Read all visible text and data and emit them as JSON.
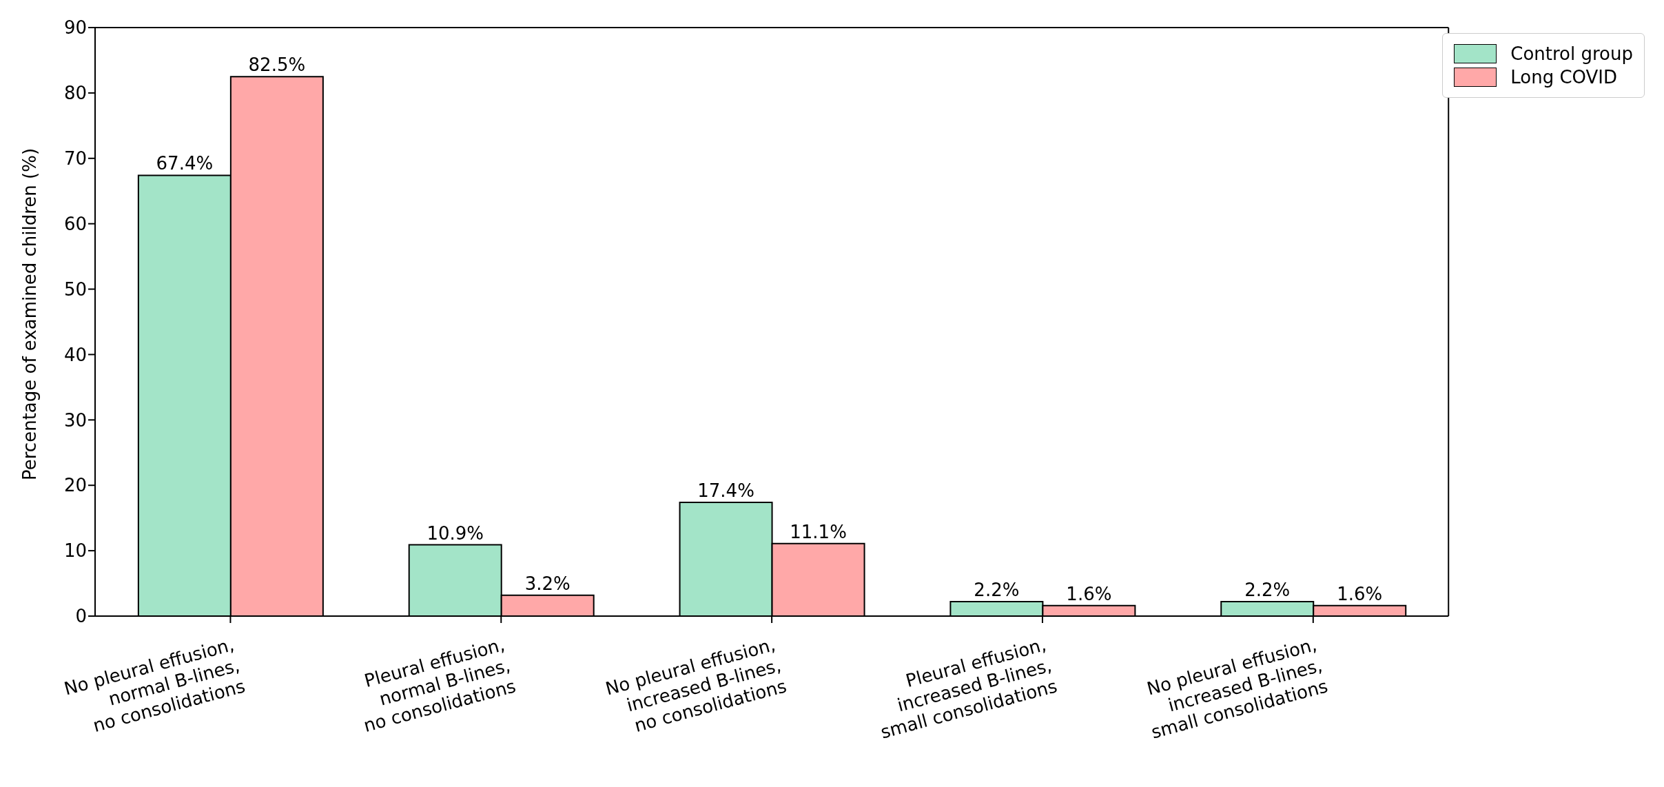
{
  "chart_data": {
    "type": "bar",
    "categories": [
      "No pleural effusion, normal B-lines, no consolidations",
      "Pleural effusion, normal B-lines, no consolidations",
      "No pleural effusion, increased B-lines, no consolidations",
      "Pleural effusion, increased B-lines, small consolidations",
      "No pleural effusion, increased B-lines, small consolidations"
    ],
    "series": [
      {
        "name": "Control group",
        "color": "#a3e4c8",
        "values": [
          67.4,
          10.9,
          17.4,
          2.2,
          2.2
        ],
        "value_labels": [
          "67.4%",
          "10.9%",
          "17.4%",
          "2.2%",
          "2.2%"
        ]
      },
      {
        "name": "Long COVID",
        "color": "#ffa8a8",
        "values": [
          82.5,
          3.2,
          11.1,
          1.6,
          1.6
        ],
        "value_labels": [
          "82.5%",
          "3.2%",
          "11.1%",
          "1.6%",
          "1.6%"
        ]
      }
    ],
    "ylabel": "Percentage of examined children (%)",
    "ylim": [
      0,
      90
    ],
    "yticks": [
      0,
      10,
      20,
      30,
      40,
      50,
      60,
      70,
      80,
      90
    ],
    "legend": "top right",
    "grid": false
  }
}
